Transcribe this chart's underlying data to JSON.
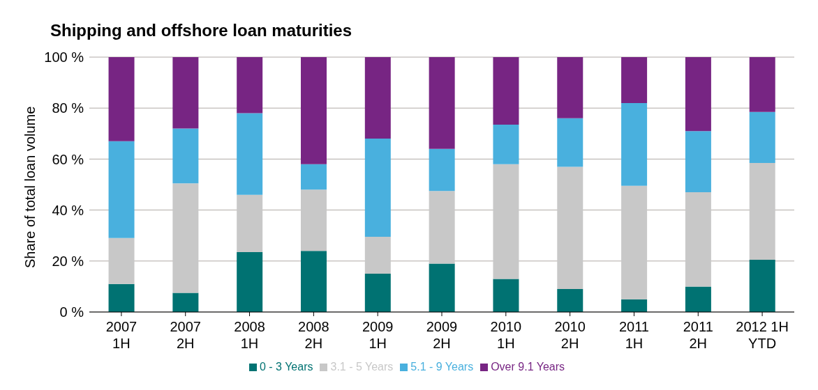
{
  "chart_data": {
    "type": "bar",
    "title": "Shipping and offshore loan maturities",
    "ylabel": "Share of total loan volume",
    "stacked": true,
    "legend": "bottom",
    "grid": "y",
    "categories": [
      "2007\n1H",
      "2007\n2H",
      "2008\n1H",
      "2008\n2H",
      "2009\n1H",
      "2009\n2H",
      "2010\n1H",
      "2010\n2H",
      "2011\n1H",
      "2011\n2H",
      "2012 1H\nYTD"
    ],
    "ylim": [
      0,
      100
    ],
    "yticks": [
      {
        "value": 0,
        "label": "0 %"
      },
      {
        "value": 20,
        "label": "20 %"
      },
      {
        "value": 40,
        "label": "40 %"
      },
      {
        "value": 60,
        "label": "60 %"
      },
      {
        "value": 80,
        "label": "80 %"
      },
      {
        "value": 100,
        "label": "100 %"
      }
    ],
    "series": [
      {
        "name": "0 - 3 Years",
        "color": "#007272",
        "values": [
          11,
          7.5,
          23.5,
          24,
          15,
          19,
          13,
          9,
          5,
          10,
          20.5
        ]
      },
      {
        "name": "3.1 - 5 Years",
        "color": "#c8c8c8",
        "values": [
          18,
          43,
          22.5,
          24,
          14.5,
          28.5,
          45,
          48,
          44.5,
          37,
          38
        ]
      },
      {
        "name": "5.1 - 9 Years",
        "color": "#49b0de",
        "values": [
          38,
          21.5,
          32,
          10,
          38.5,
          16.5,
          15.5,
          19,
          32.5,
          24,
          20
        ]
      },
      {
        "name": "Over 9.1 Years",
        "color": "#772583",
        "values": [
          33,
          28,
          22,
          42,
          32,
          36,
          26.5,
          24,
          18,
          29,
          21.5
        ]
      }
    ]
  }
}
